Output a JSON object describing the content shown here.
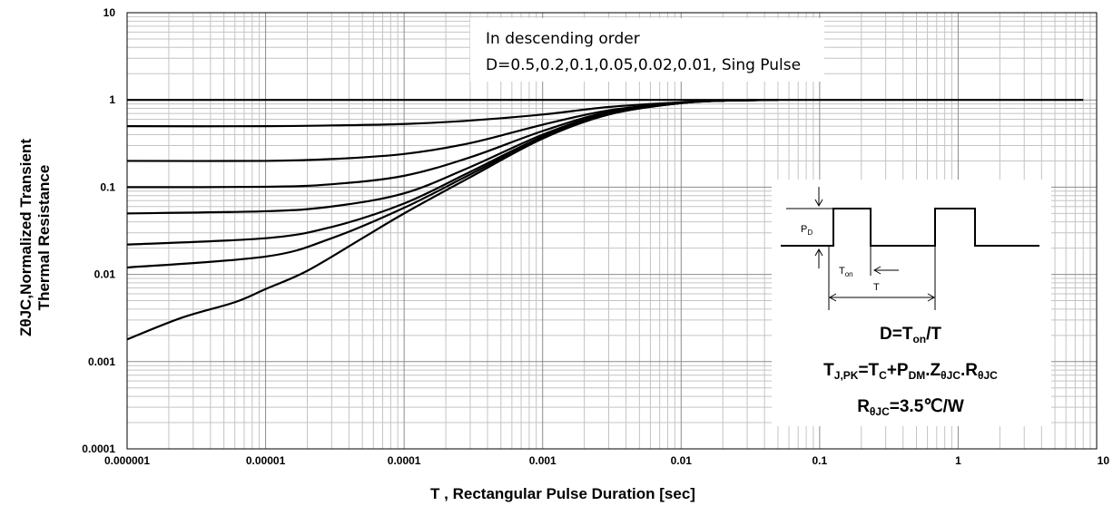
{
  "chart_data": {
    "type": "line",
    "xscale": "log",
    "yscale": "log",
    "xlim": [
      1e-06,
      10
    ],
    "ylim": [
      0.0001,
      10
    ],
    "grid": true,
    "xlabel": "T , Rectangular Pulse Duration [sec]",
    "ylabel_line1": "ZθJC,Normalized Transient",
    "ylabel_line2": "Thermal Resistance",
    "x_ticks": [
      "0.000001",
      "0.00001",
      "0.0001",
      "0.001",
      "0.01",
      "0.1",
      "1",
      "10"
    ],
    "y_ticks": [
      "0.0001",
      "0.001",
      "0.01",
      "0.1",
      "1",
      "10"
    ],
    "series": [
      {
        "x": [
          1e-06,
          1e-05,
          0.0001,
          0.001,
          0.003,
          0.01,
          0.02,
          0.05,
          0.1,
          1,
          8
        ],
        "y": [
          1,
          1,
          1,
          1,
          1,
          1,
          1,
          1,
          1,
          1,
          1
        ]
      },
      {
        "x": [
          1e-06,
          1e-05,
          3e-05,
          0.0001,
          0.0003,
          0.001,
          0.003,
          0.01,
          0.02,
          0.05
        ],
        "y": [
          0.5,
          0.5,
          0.51,
          0.53,
          0.58,
          0.68,
          0.83,
          0.94,
          0.98,
          1.0
        ]
      },
      {
        "x": [
          1e-06,
          1e-05,
          3e-05,
          0.0001,
          0.0003,
          0.001,
          0.003,
          0.01,
          0.02,
          0.05
        ],
        "y": [
          0.2,
          0.2,
          0.21,
          0.24,
          0.32,
          0.52,
          0.76,
          0.93,
          0.98,
          1.0
        ]
      },
      {
        "x": [
          1e-06,
          1e-05,
          3e-05,
          0.0001,
          0.0003,
          0.001,
          0.003,
          0.01,
          0.02,
          0.05
        ],
        "y": [
          0.1,
          0.101,
          0.108,
          0.135,
          0.22,
          0.44,
          0.73,
          0.92,
          0.98,
          1.0
        ]
      },
      {
        "x": [
          1e-06,
          1e-05,
          3e-05,
          0.0001,
          0.0003,
          0.001,
          0.003,
          0.01,
          0.02,
          0.05
        ],
        "y": [
          0.05,
          0.053,
          0.06,
          0.085,
          0.17,
          0.4,
          0.71,
          0.92,
          0.98,
          1.0
        ]
      },
      {
        "x": [
          1e-06,
          1e-05,
          3e-05,
          0.0001,
          0.0003,
          0.001,
          0.003,
          0.01,
          0.02,
          0.05
        ],
        "y": [
          0.022,
          0.026,
          0.035,
          0.065,
          0.15,
          0.38,
          0.7,
          0.92,
          0.98,
          1.0
        ]
      },
      {
        "x": [
          1e-06,
          1e-05,
          3e-05,
          0.0001,
          0.0003,
          0.001,
          0.003,
          0.01,
          0.02,
          0.05
        ],
        "y": [
          0.012,
          0.016,
          0.026,
          0.058,
          0.14,
          0.37,
          0.69,
          0.92,
          0.98,
          1.0
        ]
      },
      {
        "x": [
          1e-06,
          2.5e-06,
          6e-06,
          1e-05,
          2e-05,
          5e-05,
          0.0001,
          0.0003,
          0.001,
          0.003,
          0.01,
          0.02,
          0.05
        ],
        "y": [
          0.0018,
          0.0032,
          0.0048,
          0.0068,
          0.011,
          0.026,
          0.05,
          0.13,
          0.36,
          0.68,
          0.92,
          0.98,
          1.0
        ]
      }
    ],
    "annotation": {
      "line1": "In descending order",
      "line2": "D=0.5,0.2,0.1,0.05,0.02,0.01, Sing Pulse"
    },
    "inset": {
      "pd_label_main": "P",
      "pd_label_sub": "D",
      "ton_label_main": "T",
      "ton_label_sub": "on",
      "t_label": "T",
      "eq1_main": "D=T",
      "eq1_sub": "on",
      "eq1_tail": "/T",
      "eq2_t": "T",
      "eq2_t_sub": "J,PK",
      "eq2_eq": "=T",
      "eq2_c_sub": "C",
      "eq2_plus": "+P",
      "eq2_dm_sub": "DM",
      "eq2_dot1": ".Z",
      "eq2_z_sub": "θJC",
      "eq2_dot2": ".R",
      "eq2_r_sub": "θJC",
      "eq3_r": "R",
      "eq3_r_sub": "θJC",
      "eq3_tail": "=3.5℃/W"
    }
  }
}
